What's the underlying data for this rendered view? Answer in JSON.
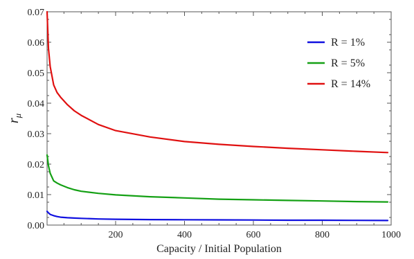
{
  "chart_data": {
    "type": "line",
    "xlabel": "Capacity / Initial Population",
    "ylabel_main": "r",
    "ylabel_sub": "μ",
    "xlim": [
      1,
      1000
    ],
    "ylim": [
      0.0,
      0.07
    ],
    "x_ticks": [
      200,
      400,
      600,
      800,
      1000
    ],
    "x_tick_labels": [
      "200",
      "400",
      "600",
      "800",
      "1000"
    ],
    "y_ticks": [
      0.0,
      0.01,
      0.02,
      0.03,
      0.04,
      0.05,
      0.06,
      0.07
    ],
    "y_tick_labels": [
      "0.00",
      "0.01",
      "0.02",
      "0.03",
      "0.04",
      "0.05",
      "0.06",
      "0.07"
    ],
    "legend_position": "top-right",
    "series": [
      {
        "name": "R = 1%",
        "color": "#1010e0",
        "x": [
          1,
          5,
          10,
          20,
          30,
          40,
          60,
          80,
          100,
          150,
          200,
          300,
          400,
          500,
          600,
          700,
          800,
          900,
          990
        ],
        "y": [
          0.0045,
          0.004,
          0.0035,
          0.0031,
          0.0028,
          0.0026,
          0.0024,
          0.0023,
          0.0022,
          0.002,
          0.0019,
          0.0018,
          0.00175,
          0.0017,
          0.00165,
          0.0016,
          0.00158,
          0.00155,
          0.0015
        ]
      },
      {
        "name": "R = 5%",
        "color": "#14a014",
        "x": [
          1,
          5,
          10,
          20,
          30,
          40,
          60,
          80,
          100,
          150,
          200,
          300,
          400,
          500,
          600,
          700,
          800,
          900,
          990
        ],
        "y": [
          0.023,
          0.0195,
          0.017,
          0.0145,
          0.0138,
          0.0132,
          0.0123,
          0.0116,
          0.0111,
          0.0104,
          0.0099,
          0.0093,
          0.0089,
          0.0085,
          0.0083,
          0.0081,
          0.0079,
          0.0077,
          0.0076
        ]
      },
      {
        "name": "R = 14%",
        "color": "#e01010",
        "x": [
          1,
          5,
          10,
          20,
          30,
          40,
          60,
          80,
          100,
          150,
          200,
          300,
          400,
          500,
          600,
          700,
          800,
          900,
          990
        ],
        "y": [
          0.07,
          0.058,
          0.052,
          0.046,
          0.0435,
          0.042,
          0.0395,
          0.0375,
          0.036,
          0.033,
          0.031,
          0.0289,
          0.0274,
          0.0265,
          0.0258,
          0.0252,
          0.0247,
          0.0242,
          0.0238
        ]
      }
    ]
  }
}
